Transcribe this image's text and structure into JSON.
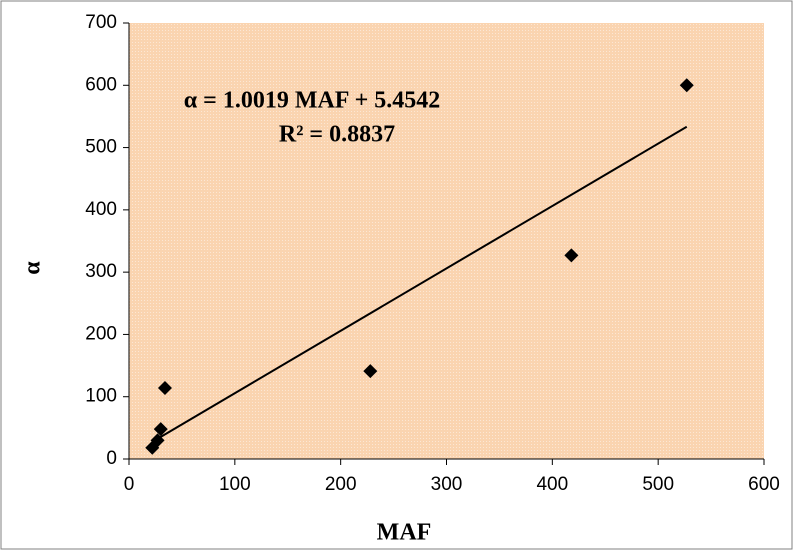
{
  "chart_data": {
    "type": "scatter",
    "x_label": "MAF",
    "y_label": "α",
    "annotations": [
      "α = 1.0019 MAF + 5.4542",
      "R² = 0.8837"
    ],
    "series": [
      {
        "color": "#000000",
        "x": [
          527,
          418,
          228,
          34,
          30,
          27,
          22
        ],
        "values": [
          600,
          327,
          141,
          114,
          48,
          30,
          18
        ]
      }
    ],
    "trendline": {
      "slope": 1.0019,
      "intercept": 5.4542,
      "color": "#000000"
    },
    "xlim": [
      0,
      600
    ],
    "xticks": [
      0,
      100,
      200,
      300,
      400,
      500,
      600
    ],
    "ylim": [
      0,
      700
    ],
    "yticks": [
      0,
      100,
      200,
      300,
      400,
      500,
      600,
      700
    ],
    "background": "#fad4b0"
  }
}
